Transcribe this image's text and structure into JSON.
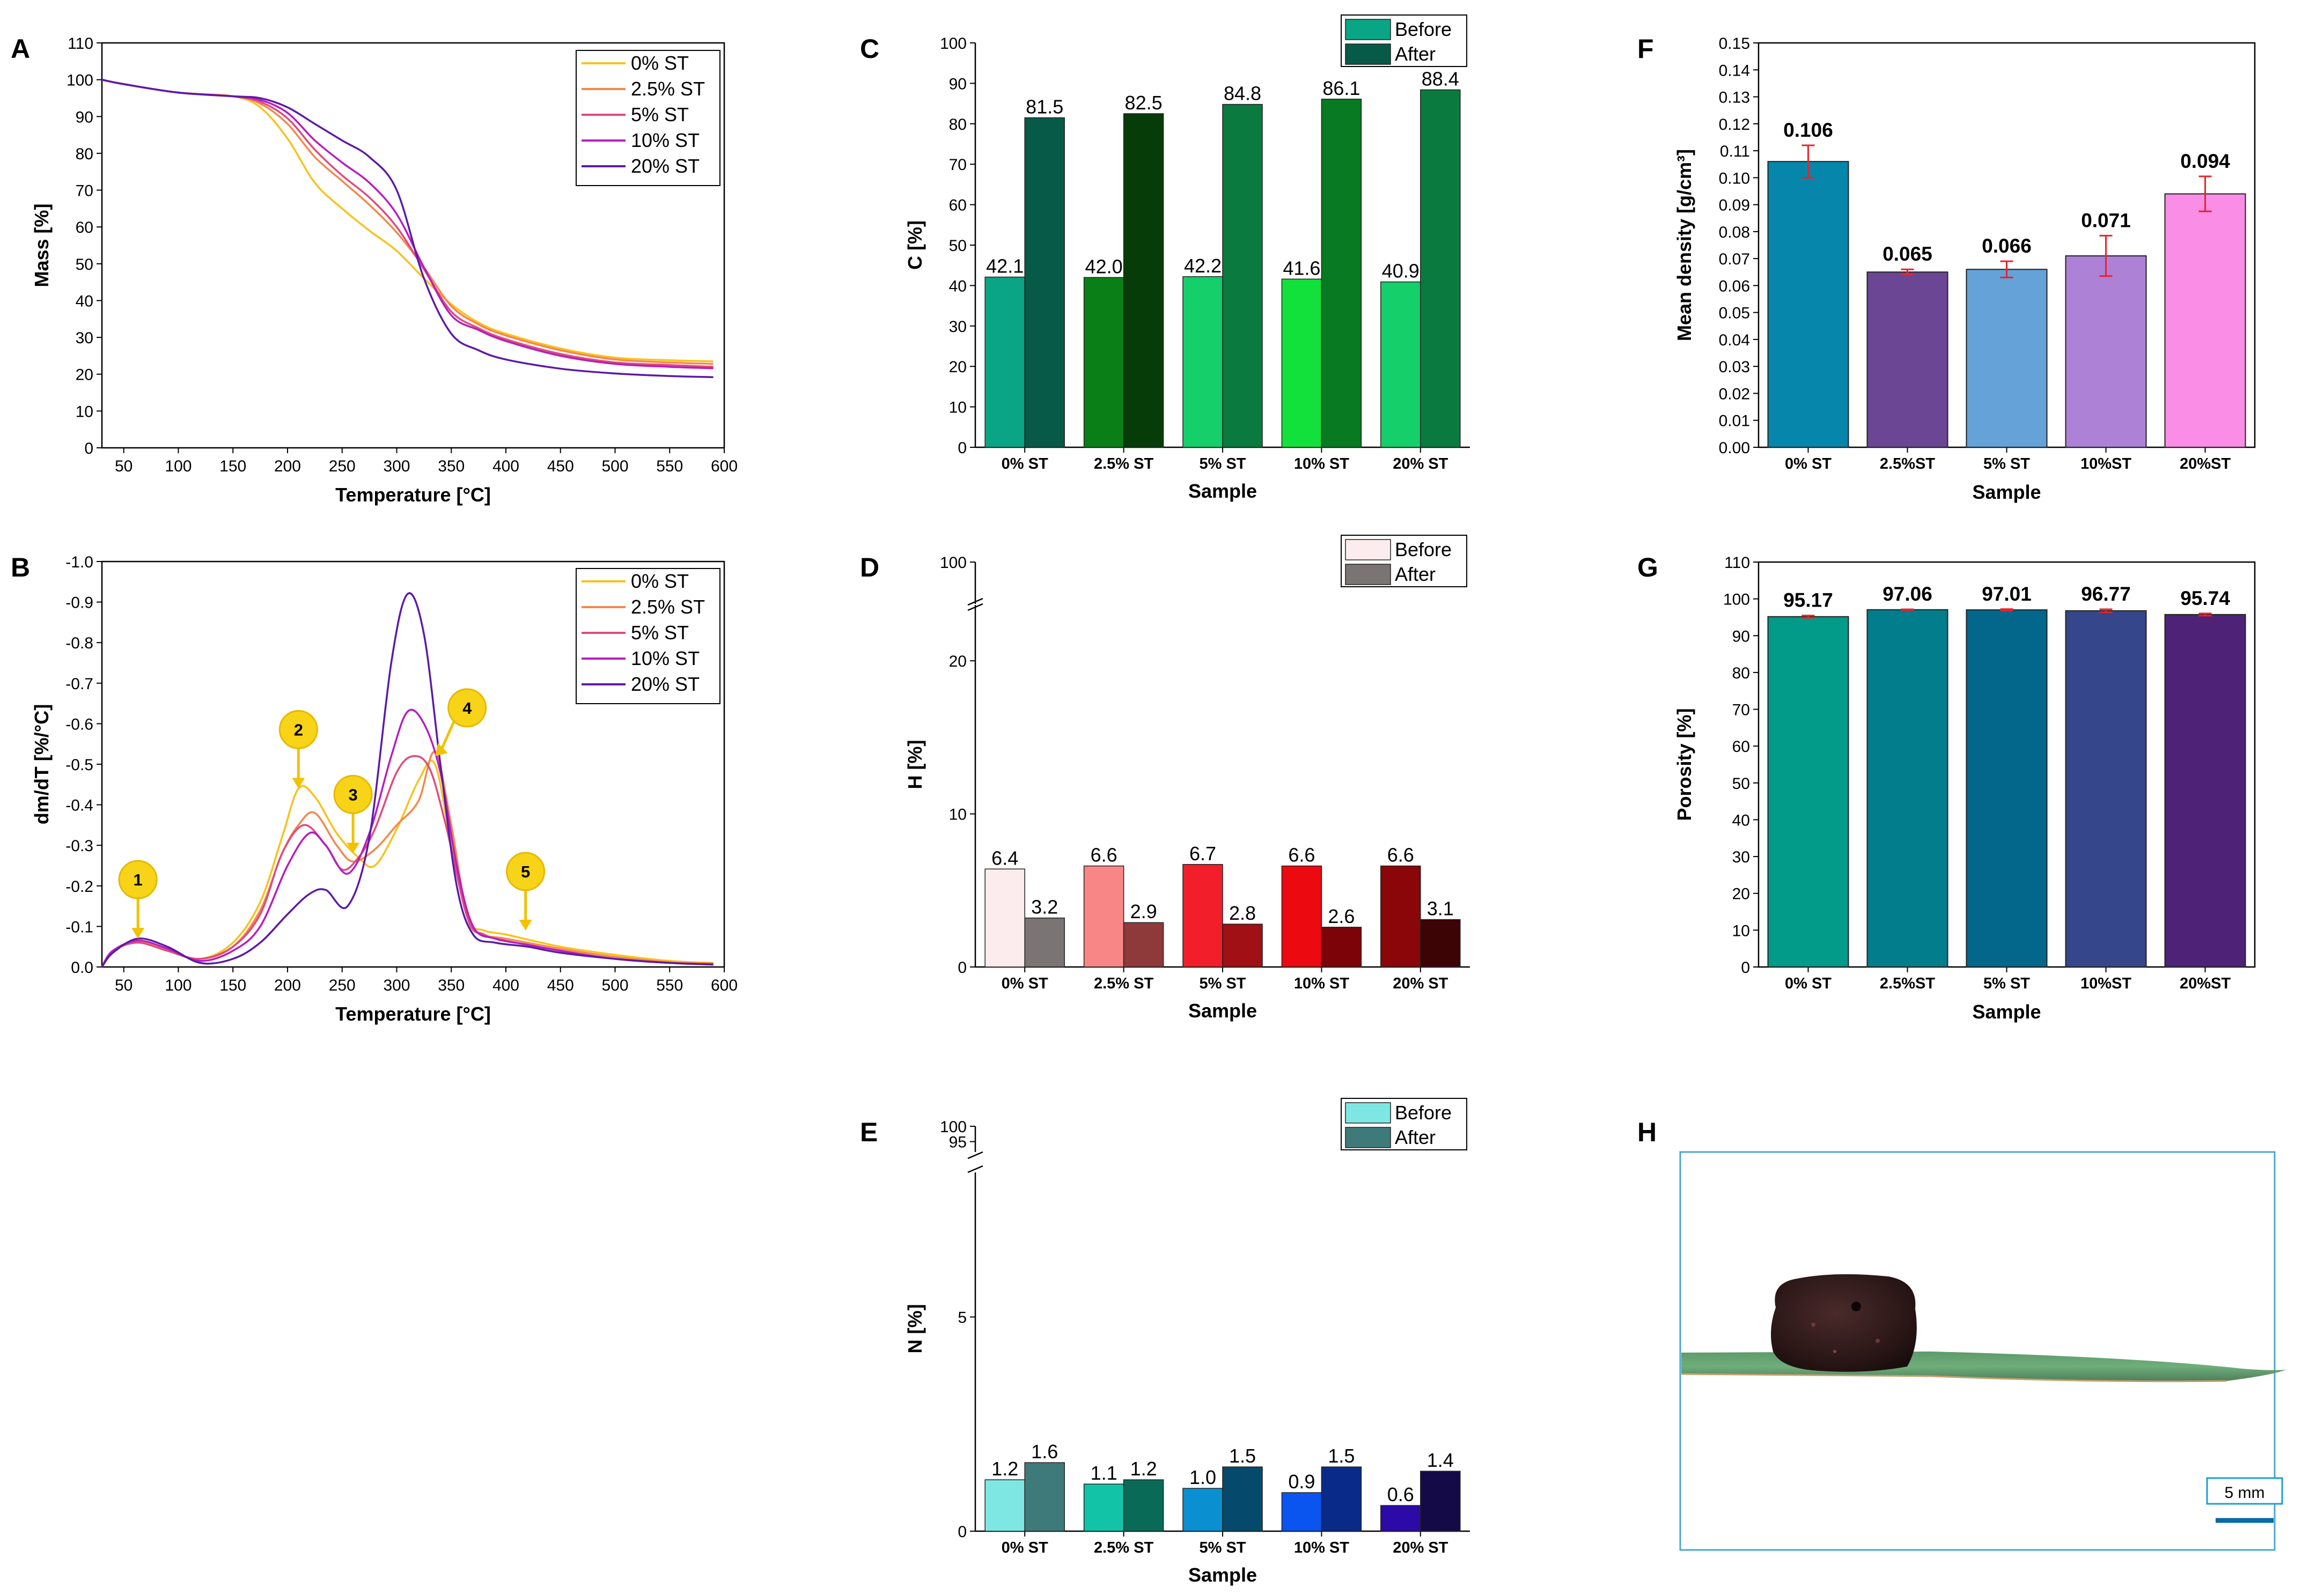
{
  "panels": {
    "A": "A",
    "B": "B",
    "C": "C",
    "D": "D",
    "E": "E",
    "F": "F",
    "G": "G",
    "H": "H"
  },
  "scale_bar": {
    "label": "5 mm"
  },
  "chart_data": [
    {
      "id": "A",
      "type": "line",
      "title": "",
      "xlabel": "Temperature [°C]",
      "ylabel": "Mass [%]",
      "xlim": [
        30,
        600
      ],
      "ylim": [
        0,
        110
      ],
      "xticks": [
        50,
        100,
        150,
        200,
        250,
        300,
        350,
        400,
        450,
        500,
        550,
        600
      ],
      "yticks": [
        0,
        10,
        20,
        30,
        40,
        50,
        60,
        70,
        80,
        90,
        100,
        110
      ],
      "legend_position": "top-right",
      "series": [
        {
          "name": "0% ST",
          "color": "#f7c21b",
          "x": [
            30,
            50,
            100,
            150,
            175,
            200,
            225,
            250,
            275,
            300,
            325,
            350,
            375,
            400,
            450,
            500,
            550,
            590
          ],
          "y": [
            100,
            98.8,
            96.5,
            95.5,
            92.5,
            84,
            72,
            65,
            59,
            53.5,
            46,
            39,
            34,
            31,
            27,
            24.5,
            23.8,
            23.5
          ]
        },
        {
          "name": "2.5% ST",
          "color": "#f4874b",
          "x": [
            30,
            50,
            100,
            150,
            175,
            200,
            225,
            250,
            275,
            300,
            325,
            350,
            375,
            400,
            450,
            500,
            550,
            590
          ],
          "y": [
            100,
            98.8,
            96.5,
            95.5,
            93.5,
            88,
            79,
            72.5,
            66,
            58.5,
            49,
            38.5,
            33.5,
            30.5,
            26.5,
            24,
            23.2,
            22.8
          ]
        },
        {
          "name": "5% ST",
          "color": "#e04a7f",
          "x": [
            30,
            50,
            100,
            150,
            175,
            200,
            225,
            250,
            275,
            300,
            325,
            350,
            375,
            400,
            450,
            500,
            550,
            590
          ],
          "y": [
            100,
            98.8,
            96.5,
            95.5,
            94,
            89.5,
            81,
            74,
            68,
            60,
            48.5,
            37,
            32.5,
            29.5,
            25.5,
            23.2,
            22.5,
            22
          ]
        },
        {
          "name": "10% ST",
          "color": "#b51ebf",
          "x": [
            30,
            50,
            100,
            150,
            175,
            200,
            225,
            250,
            275,
            300,
            325,
            350,
            375,
            400,
            450,
            500,
            550,
            590
          ],
          "y": [
            100,
            98.8,
            96.5,
            95.5,
            94.5,
            91,
            83.5,
            77.5,
            72,
            63.5,
            49,
            36,
            32,
            29,
            25,
            22.8,
            22,
            21.6
          ]
        },
        {
          "name": "20% ST",
          "color": "#5b1aa8",
          "x": [
            30,
            50,
            100,
            150,
            175,
            200,
            225,
            250,
            275,
            300,
            325,
            350,
            375,
            400,
            450,
            500,
            550,
            590
          ],
          "y": [
            100,
            98.8,
            96.5,
            95.5,
            95,
            92.5,
            88,
            83.5,
            79,
            70,
            46,
            31,
            26.5,
            24,
            21.5,
            20.2,
            19.5,
            19.2
          ]
        }
      ]
    },
    {
      "id": "B",
      "type": "line",
      "title": "",
      "xlabel": "Temperature [°C]",
      "ylabel": "dm/dT [%/°C]",
      "xlim": [
        30,
        600
      ],
      "ylim": [
        0,
        -1.0
      ],
      "xticks": [
        50,
        100,
        150,
        200,
        250,
        300,
        350,
        400,
        450,
        500,
        550,
        600
      ],
      "yticks": [
        0.0,
        -0.1,
        -0.2,
        -0.3,
        -0.4,
        -0.5,
        -0.6,
        -0.7,
        -0.8,
        -0.9,
        -1.0
      ],
      "legend_position": "top-right",
      "annotations": [
        {
          "label": "1",
          "x": 63,
          "y": -0.07
        },
        {
          "label": "2",
          "x": 210,
          "y": -0.44
        },
        {
          "label": "3",
          "x": 260,
          "y": -0.28
        },
        {
          "label": "4",
          "x": 335,
          "y": -0.52
        },
        {
          "label": "5",
          "x": 418,
          "y": -0.09
        }
      ],
      "series": [
        {
          "name": "0% ST",
          "color": "#f7c21b",
          "x": [
            30,
            40,
            63,
            90,
            120,
            150,
            175,
            195,
            210,
            225,
            245,
            265,
            280,
            300,
            320,
            335,
            350,
            365,
            380,
            400,
            450,
            500,
            550,
            590
          ],
          "y": [
            0,
            -0.04,
            -0.065,
            -0.04,
            -0.02,
            -0.06,
            -0.16,
            -0.32,
            -0.44,
            -0.42,
            -0.33,
            -0.27,
            -0.25,
            -0.34,
            -0.46,
            -0.5,
            -0.3,
            -0.12,
            -0.09,
            -0.08,
            -0.05,
            -0.03,
            -0.015,
            -0.01
          ]
        },
        {
          "name": "2.5% ST",
          "color": "#f4874b",
          "x": [
            30,
            40,
            63,
            90,
            120,
            150,
            175,
            195,
            210,
            225,
            245,
            260,
            280,
            300,
            320,
            335,
            350,
            365,
            380,
            400,
            450,
            500,
            550,
            590
          ],
          "y": [
            0,
            -0.04,
            -0.06,
            -0.04,
            -0.02,
            -0.05,
            -0.14,
            -0.28,
            -0.35,
            -0.38,
            -0.3,
            -0.26,
            -0.29,
            -0.35,
            -0.41,
            -0.53,
            -0.35,
            -0.12,
            -0.08,
            -0.07,
            -0.045,
            -0.025,
            -0.012,
            -0.008
          ]
        },
        {
          "name": "5% ST",
          "color": "#e04a7f",
          "x": [
            30,
            40,
            63,
            90,
            120,
            150,
            175,
            195,
            215,
            235,
            250,
            265,
            280,
            300,
            315,
            330,
            345,
            365,
            380,
            400,
            450,
            500,
            550,
            590
          ],
          "y": [
            0,
            -0.04,
            -0.06,
            -0.04,
            -0.02,
            -0.05,
            -0.13,
            -0.28,
            -0.35,
            -0.3,
            -0.24,
            -0.27,
            -0.34,
            -0.48,
            -0.52,
            -0.49,
            -0.35,
            -0.12,
            -0.08,
            -0.065,
            -0.04,
            -0.02,
            -0.01,
            -0.008
          ]
        },
        {
          "name": "10% ST",
          "color": "#b51ebf",
          "x": [
            30,
            40,
            63,
            90,
            120,
            150,
            175,
            200,
            220,
            235,
            255,
            275,
            295,
            310,
            325,
            340,
            355,
            370,
            390,
            420,
            450,
            500,
            550,
            590
          ],
          "y": [
            0,
            -0.04,
            -0.065,
            -0.045,
            -0.015,
            -0.04,
            -0.1,
            -0.25,
            -0.33,
            -0.3,
            -0.23,
            -0.33,
            -0.52,
            -0.63,
            -0.6,
            -0.48,
            -0.25,
            -0.1,
            -0.07,
            -0.055,
            -0.04,
            -0.02,
            -0.01,
            -0.006
          ]
        },
        {
          "name": "20% ST",
          "color": "#5b1aa8",
          "x": [
            30,
            40,
            63,
            90,
            120,
            150,
            175,
            200,
            220,
            235,
            255,
            275,
            295,
            310,
            325,
            340,
            355,
            370,
            390,
            420,
            450,
            500,
            550,
            590
          ],
          "y": [
            0,
            -0.035,
            -0.07,
            -0.05,
            -0.01,
            -0.02,
            -0.06,
            -0.13,
            -0.18,
            -0.19,
            -0.15,
            -0.32,
            -0.75,
            -0.92,
            -0.82,
            -0.5,
            -0.2,
            -0.08,
            -0.06,
            -0.05,
            -0.035,
            -0.02,
            -0.01,
            -0.006
          ]
        }
      ]
    },
    {
      "id": "C",
      "type": "bar",
      "xlabel": "Sample",
      "ylabel": "C [%]",
      "ylim": [
        0,
        100
      ],
      "yticks": [
        0,
        10,
        20,
        30,
        40,
        50,
        60,
        70,
        80,
        90,
        100
      ],
      "legend_position": "top-right",
      "categories": [
        "0% ST",
        "2.5% ST",
        "5% ST",
        "10% ST",
        "20% ST"
      ],
      "series": [
        {
          "name": "Before",
          "values": [
            42.1,
            42.0,
            42.2,
            41.6,
            40.9
          ],
          "labels": [
            "42.1",
            "42.0",
            "42.2",
            "41.6",
            "40.9"
          ],
          "colors": [
            "#0aa584",
            "#0a7f18",
            "#14cf6a",
            "#12e03b",
            "#14cf6a"
          ]
        },
        {
          "name": "After",
          "values": [
            81.5,
            82.5,
            84.8,
            86.1,
            88.4
          ],
          "labels": [
            "81.5",
            "82.5",
            "84.8",
            "86.1",
            "88.4"
          ],
          "colors": [
            "#075a48",
            "#063c08",
            "#0a7a3e",
            "#087a22",
            "#0a7a3e"
          ]
        }
      ],
      "legend_colors": [
        "#0aa584",
        "#075a48"
      ]
    },
    {
      "id": "D",
      "type": "bar",
      "xlabel": "Sample",
      "ylabel": "H [%]",
      "ylim": [
        0,
        100
      ],
      "axis_break": [
        24,
        97
      ],
      "yticks": [
        0,
        10,
        20,
        100
      ],
      "legend_position": "top-right",
      "categories": [
        "0% ST",
        "2.5% ST",
        "5% ST",
        "10% ST",
        "20% ST"
      ],
      "series": [
        {
          "name": "Before",
          "values": [
            6.4,
            6.6,
            6.7,
            6.6,
            6.6
          ],
          "labels": [
            "6.4",
            "6.6",
            "6.7",
            "6.6",
            "6.6"
          ],
          "colors": [
            "#fdeced",
            "#f98686",
            "#f21e2a",
            "#ec0a10",
            "#8a0608"
          ]
        },
        {
          "name": "After",
          "values": [
            3.2,
            2.9,
            2.8,
            2.6,
            3.1
          ],
          "labels": [
            "3.2",
            "2.9",
            "2.8",
            "2.6",
            "3.1"
          ],
          "colors": [
            "#7a7474",
            "#8e3a3a",
            "#a01014",
            "#7c0408",
            "#3d0406"
          ]
        }
      ],
      "legend_colors": [
        "#fdeced",
        "#7a7474"
      ]
    },
    {
      "id": "E",
      "type": "bar",
      "xlabel": "Sample",
      "ylabel": "N [%]",
      "ylim": [
        0,
        100
      ],
      "axis_break": [
        8.5,
        93
      ],
      "yticks": [
        0,
        5,
        95,
        100
      ],
      "legend_position": "top-right",
      "categories": [
        "0% ST",
        "2.5% ST",
        "5% ST",
        "10% ST",
        "20% ST"
      ],
      "series": [
        {
          "name": "Before",
          "values": [
            1.2,
            1.1,
            1.0,
            0.9,
            0.6
          ],
          "labels": [
            "1.2",
            "1.1",
            "1.0",
            "0.9",
            "0.6"
          ],
          "colors": [
            "#7fe7e3",
            "#12c3a8",
            "#0a8fd0",
            "#0a54f0",
            "#2c0aa8"
          ]
        },
        {
          "name": "After",
          "values": [
            1.6,
            1.2,
            1.5,
            1.5,
            1.4
          ],
          "labels": [
            "1.6",
            "1.2",
            "1.5",
            "1.5",
            "1.4"
          ],
          "colors": [
            "#3f7a7a",
            "#0a6a58",
            "#054a6c",
            "#0a2a8a",
            "#150a48"
          ]
        }
      ],
      "legend_colors": [
        "#7fe7e3",
        "#3f7a7a"
      ]
    },
    {
      "id": "F",
      "type": "bar",
      "xlabel": "Sample",
      "ylabel": "Mean density [g/cm³]",
      "ylim": [
        0,
        0.15
      ],
      "yticks": [
        0.0,
        0.01,
        0.02,
        0.03,
        0.04,
        0.05,
        0.06,
        0.07,
        0.08,
        0.09,
        0.1,
        0.11,
        0.12,
        0.13,
        0.14,
        0.15
      ],
      "categories": [
        "0% ST",
        "2.5%ST",
        "5% ST",
        "10%ST",
        "20%ST"
      ],
      "values": [
        0.106,
        0.065,
        0.066,
        0.071,
        0.094
      ],
      "labels": [
        "0.106",
        "0.065",
        "0.066",
        "0.071",
        "0.094"
      ],
      "errors": [
        0.006,
        0.001,
        0.003,
        0.0075,
        0.0065
      ],
      "colors": [
        "#0686aa",
        "#6a4694",
        "#64a2d8",
        "#ad82d6",
        "#fa8ee6"
      ]
    },
    {
      "id": "G",
      "type": "bar",
      "xlabel": "Sample",
      "ylabel": "Porosity [%]",
      "ylim": [
        0,
        110
      ],
      "yticks": [
        0,
        10,
        20,
        30,
        40,
        50,
        60,
        70,
        80,
        90,
        100,
        110
      ],
      "categories": [
        "0% ST",
        "2.5%ST",
        "5% ST",
        "10%ST",
        "20%ST"
      ],
      "values": [
        95.17,
        97.06,
        97.01,
        96.77,
        95.74
      ],
      "labels": [
        "95.17",
        "97.06",
        "97.01",
        "96.77",
        "95.74"
      ],
      "errors": [
        0.3,
        0.1,
        0.2,
        0.4,
        0.3
      ],
      "colors": [
        "#029a88",
        "#027d8c",
        "#02678a",
        "#35468a",
        "#4e2276"
      ]
    }
  ]
}
